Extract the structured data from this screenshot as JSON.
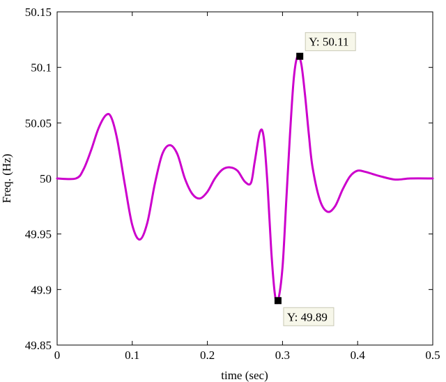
{
  "chart_data": {
    "type": "line",
    "title": "",
    "xlabel": "time (sec)",
    "ylabel": "Freq. (Hz)",
    "xlim": [
      0,
      0.5
    ],
    "ylim": [
      49.85,
      50.15
    ],
    "x_ticks": [
      "0",
      "0.1",
      "0.2",
      "0.3",
      "0.4",
      "0.5"
    ],
    "y_ticks": [
      "49.85",
      "49.9",
      "49.95",
      "50",
      "50.05",
      "50.1",
      "50.15"
    ],
    "grid": false,
    "line_color": "#cc00cc",
    "series": [
      {
        "points": [
          [
            0.0,
            50.0
          ],
          [
            0.025,
            50.0
          ],
          [
            0.035,
            50.008
          ],
          [
            0.045,
            50.025
          ],
          [
            0.055,
            50.045
          ],
          [
            0.065,
            50.057
          ],
          [
            0.072,
            50.055
          ],
          [
            0.08,
            50.035
          ],
          [
            0.09,
            49.995
          ],
          [
            0.1,
            49.958
          ],
          [
            0.11,
            49.945
          ],
          [
            0.12,
            49.96
          ],
          [
            0.13,
            49.995
          ],
          [
            0.14,
            50.022
          ],
          [
            0.15,
            50.03
          ],
          [
            0.16,
            50.022
          ],
          [
            0.17,
            50.0
          ],
          [
            0.18,
            49.986
          ],
          [
            0.19,
            49.982
          ],
          [
            0.2,
            49.988
          ],
          [
            0.21,
            50.0
          ],
          [
            0.22,
            50.008
          ],
          [
            0.23,
            50.01
          ],
          [
            0.24,
            50.007
          ],
          [
            0.25,
            49.997
          ],
          [
            0.258,
            49.996
          ],
          [
            0.263,
            50.015
          ],
          [
            0.27,
            50.042
          ],
          [
            0.275,
            50.037
          ],
          [
            0.28,
            49.995
          ],
          [
            0.285,
            49.935
          ],
          [
            0.29,
            49.895
          ],
          [
            0.294,
            49.89
          ],
          [
            0.3,
            49.92
          ],
          [
            0.305,
            49.98
          ],
          [
            0.31,
            50.04
          ],
          [
            0.315,
            50.09
          ],
          [
            0.32,
            50.11
          ],
          [
            0.325,
            50.103
          ],
          [
            0.33,
            50.075
          ],
          [
            0.335,
            50.04
          ],
          [
            0.34,
            50.01
          ],
          [
            0.35,
            49.98
          ],
          [
            0.36,
            49.97
          ],
          [
            0.37,
            49.975
          ],
          [
            0.38,
            49.99
          ],
          [
            0.39,
            50.002
          ],
          [
            0.4,
            50.007
          ],
          [
            0.41,
            50.006
          ],
          [
            0.42,
            50.004
          ],
          [
            0.43,
            50.002
          ],
          [
            0.45,
            49.999
          ],
          [
            0.47,
            50.0
          ],
          [
            0.5,
            50.0
          ]
        ]
      }
    ],
    "datatips": [
      {
        "x": 0.323,
        "y": 50.11,
        "label": "Y: 50.11",
        "placement": "top-right"
      },
      {
        "x": 0.294,
        "y": 49.89,
        "label": "Y: 49.89",
        "placement": "bottom-right"
      }
    ]
  }
}
